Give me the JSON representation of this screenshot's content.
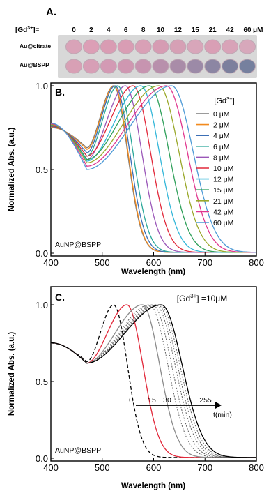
{
  "panelA": {
    "label": "A.",
    "conc_prefix": "[Gd",
    "conc_sup": "3+",
    "conc_suffix": "]=",
    "concentrations": [
      "0",
      "2",
      "4",
      "6",
      "8",
      "10",
      "12",
      "15",
      "21",
      "42",
      "60"
    ],
    "unit": "μM",
    "rows": [
      {
        "label": "Au@citrate",
        "colors": [
          "#d9a3b8",
          "#dc9fb6",
          "#d99cb3",
          "#d99db4",
          "#d9a0b6",
          "#d69cb3",
          "#d6a0b5",
          "#d8a6ba",
          "#d99fb5",
          "#d8a3b8",
          "#d7a8bb"
        ]
      },
      {
        "label": "Au@BSPP",
        "colors": [
          "#d8a0b5",
          "#d79fb6",
          "#d39ab4",
          "#cf97b1",
          "#c794b0",
          "#b890ac",
          "#a98ca8",
          "#9c8aa7",
          "#8c86a3",
          "#7c7f9d",
          "#76809e"
        ]
      }
    ]
  },
  "chart_data": [
    {
      "type": "line",
      "panel_label": "B.",
      "annotation": "AuNP@BSPP",
      "xlabel": "Wavelength (nm)",
      "ylabel": "Normalized Abs. (a.u.)",
      "xlim": [
        400,
        800
      ],
      "ylim": [
        0.0,
        1.0
      ],
      "xticks": [
        400,
        500,
        600,
        700,
        800
      ],
      "yticks": [
        "0.0",
        "0.5",
        "1.0"
      ],
      "legend_title_prefix": "[Gd",
      "legend_title_sup": "3+",
      "legend_title_suffix": "]",
      "legend_position": "right",
      "grid": false,
      "series": [
        {
          "name": "0 μM",
          "color": "#7a7a7a",
          "peak": 522,
          "min": 0.63,
          "width": 40
        },
        {
          "name": "2 μM",
          "color": "#f28a1e",
          "peak": 523,
          "min": 0.62,
          "width": 40
        },
        {
          "name": "4 μM",
          "color": "#3c6fb5",
          "peak": 525,
          "min": 0.6,
          "width": 42
        },
        {
          "name": "6 μM",
          "color": "#2aa89a",
          "peak": 530,
          "min": 0.58,
          "width": 44
        },
        {
          "name": "8 μM",
          "color": "#9a56b8",
          "peak": 545,
          "min": 0.56,
          "width": 47
        },
        {
          "name": "10 μM",
          "color": "#e2283a",
          "peak": 560,
          "min": 0.58,
          "width": 50
        },
        {
          "name": "12 μM",
          "color": "#34b7d9",
          "peak": 575,
          "min": 0.55,
          "width": 53
        },
        {
          "name": "15 μM",
          "color": "#2fa05a",
          "peak": 592,
          "min": 0.56,
          "width": 56
        },
        {
          "name": "21 μM",
          "color": "#9aa82a",
          "peak": 610,
          "min": 0.54,
          "width": 58
        },
        {
          "name": "42 μM",
          "color": "#e0378f",
          "peak": 625,
          "min": 0.52,
          "width": 60
        },
        {
          "name": "60 μM",
          "color": "#4d9ad6",
          "peak": 635,
          "min": 0.5,
          "width": 62
        }
      ]
    },
    {
      "type": "line",
      "panel_label": "C.",
      "annotation": "AuNP@BSPP",
      "condition_prefix": "[Gd",
      "condition_sup": "3+",
      "condition_suffix": "] =10μM",
      "xlabel": "Wavelength (nm)",
      "ylabel": "Normalized Abs. (a.u.)",
      "xlim": [
        400,
        800
      ],
      "ylim": [
        0.0,
        1.0
      ],
      "xticks": [
        400,
        500,
        600,
        700,
        800
      ],
      "yticks": [
        "0.0",
        "0.5",
        "1.0"
      ],
      "grid": false,
      "time_axis": {
        "label": "t(min)",
        "ticks": [
          "0",
          "15",
          "30",
          "255"
        ]
      },
      "series": [
        {
          "time": 0,
          "style": "dashed",
          "color": "#000000",
          "peak": 522,
          "min": 0.63,
          "width": 40
        },
        {
          "time": 15,
          "style": "solid",
          "color": "#e2283a",
          "peak": 548,
          "min": 0.62,
          "width": 46
        },
        {
          "time": 30,
          "style": "solid",
          "color": "#8a8a8a",
          "peak": 578,
          "min": 0.62,
          "width": 50
        },
        {
          "time": 45,
          "style": "dotted",
          "color": "#606060",
          "peak": 592,
          "min": 0.62,
          "width": 53
        },
        {
          "time": 60,
          "style": "dotted",
          "color": "#606060",
          "peak": 598,
          "min": 0.62,
          "width": 55
        },
        {
          "time": 90,
          "style": "dotted",
          "color": "#606060",
          "peak": 604,
          "min": 0.62,
          "width": 56
        },
        {
          "time": 120,
          "style": "dotted",
          "color": "#606060",
          "peak": 608,
          "min": 0.62,
          "width": 57
        },
        {
          "time": 180,
          "style": "dotted",
          "color": "#606060",
          "peak": 612,
          "min": 0.62,
          "width": 58
        },
        {
          "time": 255,
          "style": "solid",
          "color": "#000000",
          "peak": 615,
          "min": 0.62,
          "width": 60
        }
      ]
    }
  ]
}
